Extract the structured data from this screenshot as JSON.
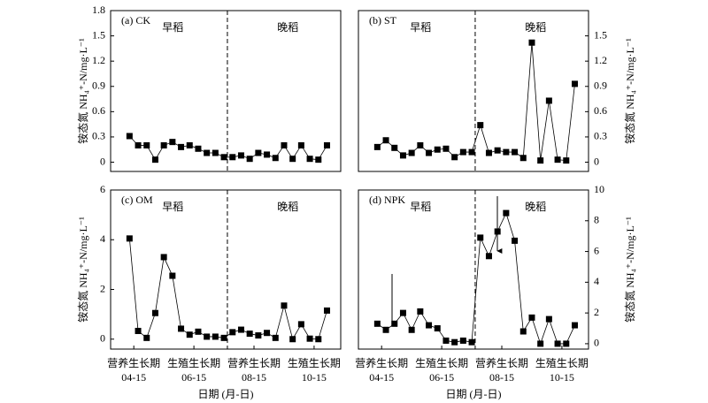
{
  "chart_data": [
    {
      "type": "line",
      "title": "(a) CK",
      "y_label": "铵态氮 NH₄⁺-N/mg·L⁻¹",
      "y_axis": "left",
      "annotations": [
        "早稻",
        "晚稻"
      ],
      "x": [
        0,
        1,
        2,
        3,
        4,
        5,
        6,
        7,
        8,
        9,
        10,
        11,
        12,
        13,
        14,
        15,
        16,
        17,
        18,
        19,
        20,
        21,
        22,
        23
      ],
      "values": [
        0.31,
        0.2,
        0.2,
        0.03,
        0.2,
        0.24,
        0.18,
        0.2,
        0.16,
        0.11,
        0.11,
        0.06,
        0.06,
        0.08,
        0.04,
        0.11,
        0.09,
        0.05,
        0.2,
        0.04,
        0.2,
        0.04,
        0.03,
        0.2
      ],
      "color": "#000000",
      "divider": 11.4,
      "xlim": [
        -2.2,
        24.6
      ],
      "ylim": [
        -0.11,
        1.8
      ],
      "yticks": [
        0,
        0.3,
        0.6,
        0.9,
        1.2,
        1.5,
        1.8
      ]
    },
    {
      "type": "line",
      "title": "(b) ST",
      "y_label": "铵态氮 NH₄⁺-N/mg·L⁻¹",
      "y_axis": "right",
      "annotations": [
        "早稻",
        "晚稻"
      ],
      "x": [
        0,
        1,
        2,
        3,
        4,
        5,
        6,
        7,
        8,
        9,
        10,
        11,
        12,
        13,
        14,
        15,
        16,
        17,
        18,
        19,
        20,
        21,
        22,
        23
      ],
      "values": [
        0.18,
        0.26,
        0.17,
        0.08,
        0.11,
        0.2,
        0.11,
        0.15,
        0.16,
        0.06,
        0.12,
        0.12,
        0.44,
        0.11,
        0.14,
        0.12,
        0.12,
        0.05,
        1.42,
        0.02,
        0.73,
        0.03,
        0.02,
        0.93
      ],
      "color": "#000000",
      "divider": 11.4,
      "xlim": [
        -2.2,
        24.6
      ],
      "ylim": [
        -0.11,
        1.8
      ],
      "yticks": [
        0,
        0.3,
        0.6,
        0.9,
        1.2,
        1.5
      ]
    },
    {
      "type": "line",
      "title": "(c) OM",
      "y_label": "铵态氮 NH₄⁺-N/mg·L⁻¹",
      "y_axis": "left",
      "annotations": [
        "早稻",
        "晚稻"
      ],
      "x_label": "日期 (月-日)",
      "x": [
        0,
        1,
        2,
        3,
        4,
        5,
        6,
        7,
        8,
        9,
        10,
        11,
        12,
        13,
        14,
        15,
        16,
        17,
        18,
        19,
        20,
        21,
        22,
        23
      ],
      "values": [
        4.05,
        0.33,
        0.05,
        1.05,
        3.3,
        2.55,
        0.42,
        0.18,
        0.3,
        0.1,
        0.1,
        0.05,
        0.28,
        0.38,
        0.22,
        0.15,
        0.25,
        0.05,
        1.35,
        0.0,
        0.6,
        0.02,
        0.0,
        1.15
      ],
      "color": "#000000",
      "divider": 11.4,
      "xlim": [
        -2.2,
        24.6
      ],
      "ylim": [
        -0.4,
        6
      ],
      "yticks": [
        0,
        2,
        4,
        6
      ],
      "xticks": [
        {
          "value": 0.5,
          "label": "04-15"
        },
        {
          "value": 7.5,
          "label": "06-15"
        },
        {
          "value": 14.5,
          "label": "08-15"
        },
        {
          "value": 21.5,
          "label": "10-15"
        }
      ],
      "xtick_stages": [
        "营养生长期",
        "生殖生长期",
        "营养生长期",
        "生殖生长期"
      ]
    },
    {
      "type": "line",
      "title": "(d) NPK",
      "y_label": "铵态氮 NH₄⁺-N/mg·L⁻¹",
      "y_axis": "right",
      "annotations": [
        "早稻",
        "晚稻"
      ],
      "x_label": "日期 (月-日)",
      "x": [
        0,
        1,
        2,
        3,
        4,
        5,
        6,
        7,
        8,
        9,
        10,
        11,
        12,
        13,
        14,
        15,
        16,
        17,
        18,
        19,
        20,
        21,
        22,
        23
      ],
      "values": [
        1.3,
        0.9,
        1.3,
        2.0,
        0.9,
        2.1,
        1.2,
        1.0,
        0.2,
        0.1,
        0.2,
        0.1,
        6.9,
        5.7,
        7.3,
        8.5,
        6.7,
        0.8,
        1.7,
        0.0,
        1.6,
        0.0,
        0.0,
        1.2
      ],
      "color": "#000000",
      "divider": 11.4,
      "xlim": [
        -2.2,
        24.6
      ],
      "ylim": [
        -0.35,
        10
      ],
      "yticks": [
        0,
        2,
        4,
        6,
        8,
        10
      ],
      "xticks": [
        {
          "value": 0.5,
          "label": "04-15"
        },
        {
          "value": 7.5,
          "label": "06-15"
        },
        {
          "value": 14.5,
          "label": "08-15"
        },
        {
          "value": 21.5,
          "label": "10-15"
        }
      ],
      "xtick_stages": [
        "营养生长期",
        "生殖生长期",
        "营养生长期",
        "生殖生长期"
      ]
    }
  ]
}
